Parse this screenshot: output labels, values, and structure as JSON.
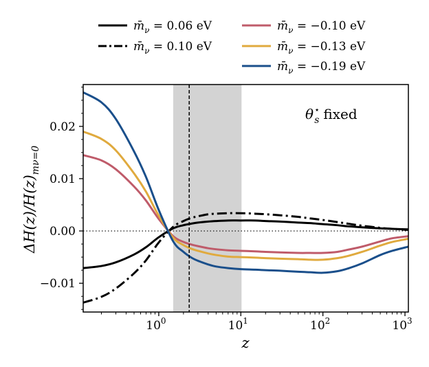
{
  "chart_data": {
    "type": "line",
    "title": "",
    "xlabel": "z",
    "ylabel": "ΔH(z)/H(z)mν=0",
    "ylabel_parts": {
      "main": "ΔH(z)/H(z)",
      "sub": "mν=0"
    },
    "xscale": "log",
    "xlim": [
      0.12,
      1100
    ],
    "ylim": [
      -0.0155,
      0.028
    ],
    "annotation": {
      "text": "θ⋆s fixed",
      "main": "θ",
      "sup": "⋆",
      "sub": "s",
      "rest": "fixed"
    },
    "x_ticks": [
      {
        "value": 1,
        "base": "10",
        "exp": "0"
      },
      {
        "value": 10,
        "base": "10",
        "exp": "1"
      },
      {
        "value": 100,
        "base": "10",
        "exp": "2"
      },
      {
        "value": 1000,
        "base": "10",
        "exp": "3"
      }
    ],
    "y_ticks": [
      {
        "value": -0.01,
        "label": "−0.01"
      },
      {
        "value": 0.0,
        "label": "0.00"
      },
      {
        "value": 0.01,
        "label": "0.01"
      },
      {
        "value": 0.02,
        "label": "0.02"
      }
    ],
    "shaded_region": {
      "x": [
        1.5,
        10.2
      ],
      "color": "#d3d3d3"
    },
    "vline": {
      "x": 2.35,
      "style": "dashed"
    },
    "hline": {
      "y": 0.0,
      "style": "dotted"
    },
    "legend_position": "top-center",
    "x": [
      0.12,
      0.2,
      0.3,
      0.5,
      0.7,
      1.0,
      1.5,
      2.0,
      2.5,
      3.0,
      4.0,
      5.0,
      7.0,
      10.0,
      15.0,
      20.0,
      30.0,
      50.0,
      70.0,
      100.0,
      150.0,
      200.0,
      300.0,
      500.0,
      700.0,
      1100.0
    ],
    "series": [
      {
        "name": "m̄ν = 0.06 eV",
        "label": {
          "lhs": "m̄",
          "sub": "ν",
          "rhs": " = 0.06 eV"
        },
        "color": "#000000",
        "style": "solid",
        "values": [
          -0.0071,
          -0.0067,
          -0.006,
          -0.0045,
          -0.0031,
          -0.0012,
          0.0005,
          0.0011,
          0.0014,
          0.0016,
          0.0018,
          0.0019,
          0.002,
          0.002,
          0.002,
          0.0019,
          0.0018,
          0.0016,
          0.0015,
          0.0013,
          0.0011,
          0.0009,
          0.0007,
          0.0005,
          0.0004,
          0.0003
        ]
      },
      {
        "name": "m̄ν = 0.10 eV",
        "label": {
          "lhs": "m̄",
          "sub": "ν",
          "rhs": " = 0.10 eV"
        },
        "color": "#000000",
        "style": "dashdot",
        "values": [
          -0.0137,
          -0.0126,
          -0.011,
          -0.0081,
          -0.0056,
          -0.0022,
          0.0008,
          0.0019,
          0.0025,
          0.0028,
          0.0032,
          0.0033,
          0.0034,
          0.0034,
          0.0033,
          0.0032,
          0.003,
          0.0027,
          0.0024,
          0.0021,
          0.0017,
          0.0014,
          0.001,
          0.0006,
          0.0004,
          0.0002
        ]
      },
      {
        "name": "m̄ν = −0.10 eV",
        "label": {
          "lhs": "m̄",
          "sub": "ν",
          "rhs": " = −0.10 eV"
        },
        "color": "#BF5B6A",
        "style": "solid",
        "values": [
          0.0145,
          0.0135,
          0.0118,
          0.0085,
          0.0058,
          0.0023,
          -0.001,
          -0.0021,
          -0.0026,
          -0.0029,
          -0.0033,
          -0.0035,
          -0.0037,
          -0.0038,
          -0.0039,
          -0.004,
          -0.0041,
          -0.0042,
          -0.0042,
          -0.0042,
          -0.004,
          -0.0036,
          -0.003,
          -0.002,
          -0.0014,
          -0.001
        ]
      },
      {
        "name": "m̄ν = −0.13 eV",
        "label": {
          "lhs": "m̄",
          "sub": "ν",
          "rhs": " = −0.13 eV"
        },
        "color": "#E0AA3E",
        "style": "solid",
        "values": [
          0.019,
          0.0176,
          0.0154,
          0.011,
          0.0075,
          0.0029,
          -0.0013,
          -0.0027,
          -0.0034,
          -0.0038,
          -0.0043,
          -0.0046,
          -0.0049,
          -0.005,
          -0.0051,
          -0.0052,
          -0.0053,
          -0.0054,
          -0.0055,
          -0.0055,
          -0.0052,
          -0.0048,
          -0.004,
          -0.0028,
          -0.0021,
          -0.0015
        ]
      },
      {
        "name": "m̄ν = −0.19 eV",
        "label": {
          "lhs": "m̄",
          "sub": "ν",
          "rhs": " = −0.19 eV"
        },
        "color": "#1A4F8B",
        "style": "solid",
        "values": [
          0.0265,
          0.0246,
          0.0214,
          0.0152,
          0.0103,
          0.004,
          -0.002,
          -0.004,
          -0.0051,
          -0.0057,
          -0.0064,
          -0.0068,
          -0.0071,
          -0.0073,
          -0.0074,
          -0.0075,
          -0.0076,
          -0.0078,
          -0.0079,
          -0.008,
          -0.0077,
          -0.0072,
          -0.0062,
          -0.0046,
          -0.0038,
          -0.003
        ]
      }
    ]
  }
}
